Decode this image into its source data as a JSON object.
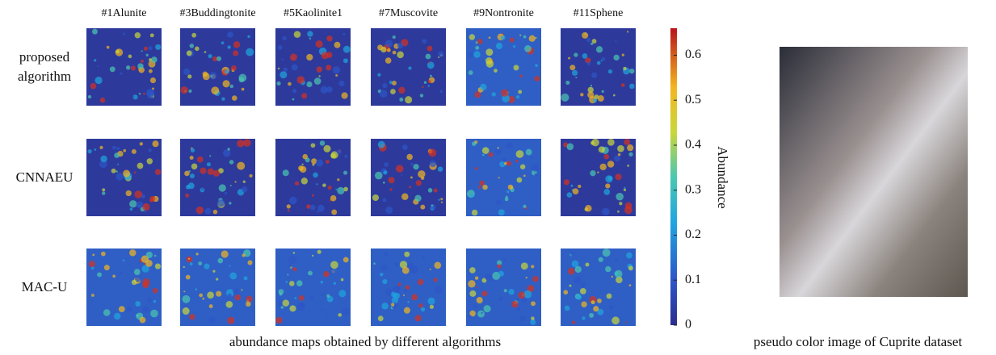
{
  "figure": {
    "columns": [
      "#1Alunite",
      "#3Buddingtonite",
      "#5Kaolinite1",
      "#7Muscovite",
      "#9Nontronite",
      "#11Sphene"
    ],
    "rows": [
      "proposed algorithm",
      "CNNAEU",
      "MAC-U"
    ],
    "colorbar": {
      "label": "Abundance",
      "lim": [
        0,
        0.66
      ],
      "ticks": [
        0,
        0.1,
        0.2,
        0.3,
        0.4,
        0.5,
        0.6
      ]
    },
    "left_caption": "abundance maps obtained by different algorithms",
    "right_caption": "pseudo color image of Cuprite dataset"
  }
}
